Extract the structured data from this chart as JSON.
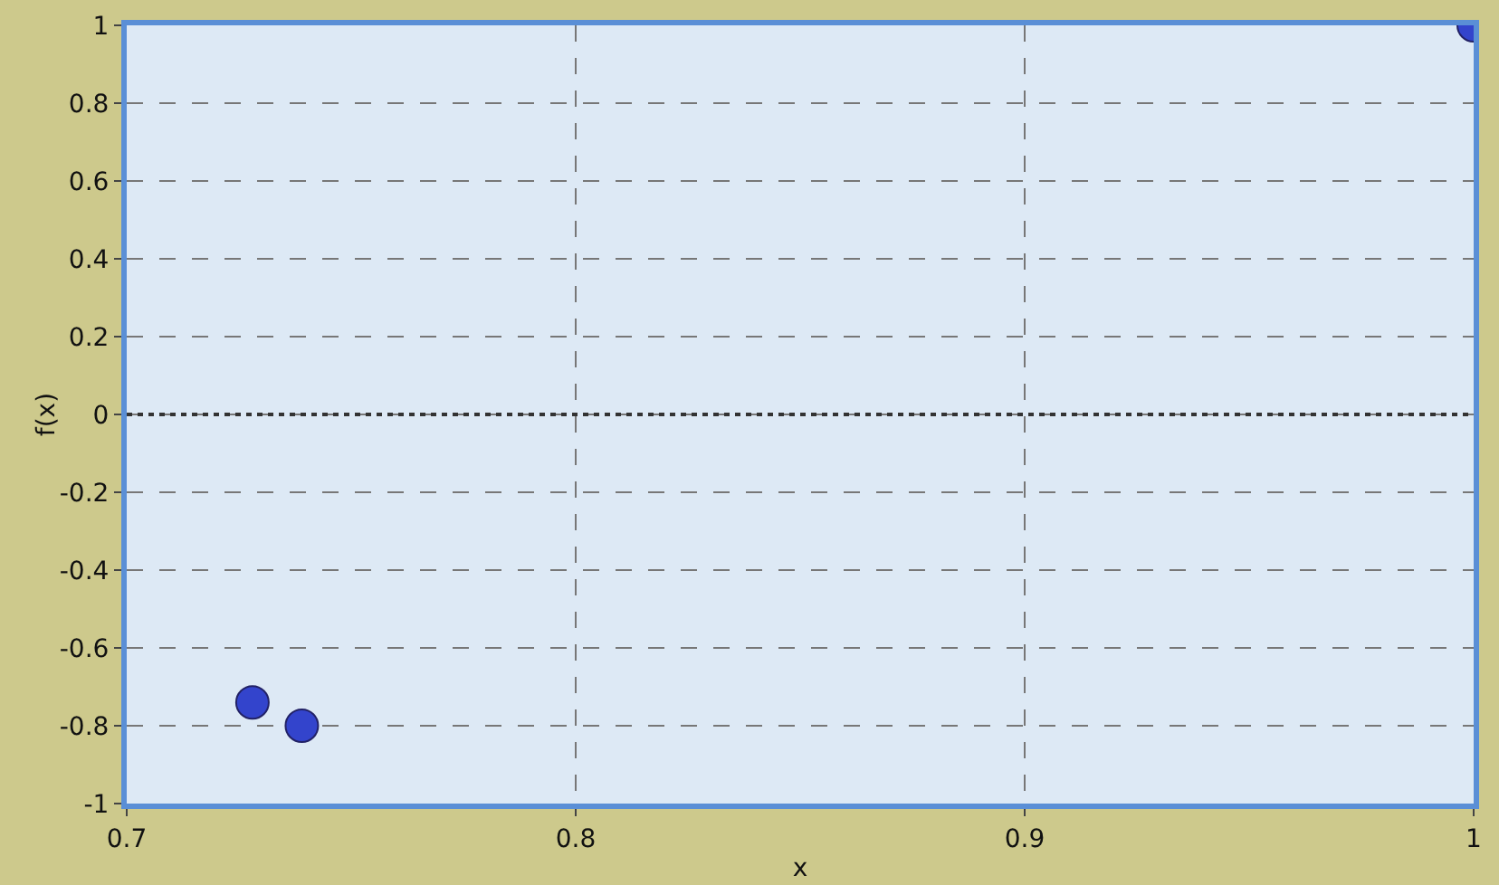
{
  "chart_data": {
    "type": "scatter",
    "xlabel": "x",
    "ylabel": "f(x)",
    "x": [
      0.728,
      0.739,
      1.0
    ],
    "series": [
      {
        "color": "#3344cc",
        "values": [
          -0.74,
          -0.8,
          1.0
        ]
      }
    ],
    "xlim": [
      0.7,
      1.0
    ],
    "xticks": [
      0.7,
      0.8,
      0.9,
      1
    ],
    "ylim": [
      -1,
      1
    ],
    "yticks": [
      -1,
      -0.8,
      -0.6,
      -0.4,
      -0.2,
      0,
      0.2,
      0.4,
      0.6,
      0.8,
      1
    ],
    "grid": true,
    "marker": "circle",
    "ref_lines": [
      {
        "axis": "y",
        "value": 0,
        "color": "#333333",
        "line_style": "dotted"
      }
    ]
  }
}
